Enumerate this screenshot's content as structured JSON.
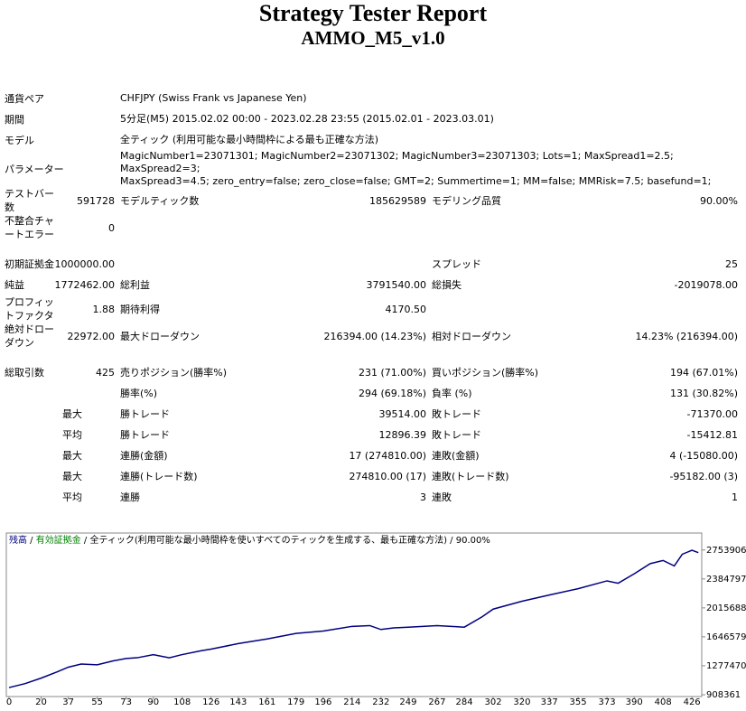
{
  "header": {
    "title": "Strategy Tester Report",
    "subtitle": "AMMO_M5_v1.0"
  },
  "info": [
    {
      "label": "通貨ペア",
      "lines": [
        "CHFJPY (Swiss Frank vs Japanese Yen)"
      ]
    },
    {
      "label": "期間",
      "lines": [
        "5分足(M5) 2015.02.02 00:00 - 2023.02.28 23:55 (2015.02.01 - 2023.03.01)"
      ]
    },
    {
      "label": "モデル",
      "lines": [
        "全ティック (利用可能な最小時間枠による最も正確な方法)"
      ]
    },
    {
      "label": "パラメーター",
      "lines": [
        "MagicNumber1=23071301; MagicNumber2=23071302; MagicNumber3=23071303; Lots=1; MaxSpread1=2.5; MaxSpread2=3;",
        "MaxSpread3=4.5; zero_entry=false; zero_close=false; GMT=2; Summertime=1; MM=false; MMRisk=7.5; basefund=1;"
      ]
    }
  ],
  "stats": [
    [
      "テストバー数",
      "591728",
      "モデルティック数",
      "185629589",
      "モデリング品質",
      "90.00%"
    ],
    [
      "不整合チャートエラー",
      "0",
      null,
      null,
      null,
      null
    ],
    [
      "初期証拠金",
      "1000000.00",
      null,
      null,
      "スプレッド",
      "25"
    ],
    [
      "純益",
      "1772462.00",
      "総利益",
      "3791540.00",
      "総損失",
      "-2019078.00"
    ],
    [
      "プロフィットファクタ",
      "1.88",
      "期待利得",
      "4170.50",
      null,
      null
    ],
    [
      "絶対ドローダウン",
      "22972.00",
      "最大ドローダウン",
      "216394.00 (14.23%)",
      "相対ドローダウン",
      "14.23% (216394.00)"
    ],
    [
      "総取引数",
      "425",
      "売りポジション(勝率%)",
      "231 (71.00%)",
      "買いポジション(勝率%)",
      "194 (67.01%)"
    ],
    [
      null,
      null,
      "勝率(%)",
      "294 (69.18%)",
      "負率 (%)",
      "131 (30.82%)"
    ],
    [
      null,
      "最大",
      "勝トレード",
      "39514.00",
      "敗トレード",
      "-71370.00"
    ],
    [
      null,
      "平均",
      "勝トレード",
      "12896.39",
      "敗トレード",
      "-15412.81"
    ],
    [
      null,
      "最大",
      "連勝(金額)",
      "17 (274810.00)",
      "連敗(金額)",
      "4 (-15080.00)"
    ],
    [
      null,
      "最大",
      "連勝(トレード数)",
      "274810.00 (17)",
      "連敗(トレード数)",
      "-95182.00 (3)"
    ],
    [
      null,
      "平均",
      "連勝",
      "3",
      "連敗",
      "1"
    ]
  ],
  "chart_data": {
    "type": "line",
    "legend": [
      "残高",
      "有効証拠金",
      "全ティック(利用可能な最小時間枠を使いすべてのティックを生成する、最も正確な方法)",
      "90.00%"
    ],
    "legend_colors": [
      "#000080",
      "#008000",
      "#000000",
      "#000000"
    ],
    "xlim": [
      0,
      431
    ],
    "ylim": [
      908361,
      2970000
    ],
    "xticks": [
      0,
      20,
      37,
      55,
      73,
      90,
      108,
      126,
      143,
      161,
      179,
      196,
      214,
      232,
      249,
      267,
      284,
      302,
      320,
      337,
      355,
      373,
      390,
      408,
      426
    ],
    "yticks": [
      908361,
      1277470,
      1646579,
      2015688,
      2384797,
      2753906
    ],
    "series": [
      {
        "name": "残高",
        "color": "#000080",
        "x": [
          0,
          10,
          20,
          30,
          37,
          45,
          55,
          65,
          73,
          80,
          90,
          100,
          108,
          120,
          126,
          143,
          161,
          179,
          196,
          214,
          225,
          232,
          240,
          249,
          267,
          284,
          295,
          302,
          320,
          337,
          355,
          373,
          380,
          390,
          400,
          408,
          415,
          420,
          426,
          430
        ],
        "values": [
          1000000,
          1050000,
          1120000,
          1200000,
          1260000,
          1300000,
          1290000,
          1340000,
          1370000,
          1380000,
          1420000,
          1380000,
          1420000,
          1470000,
          1490000,
          1560000,
          1620000,
          1690000,
          1720000,
          1780000,
          1790000,
          1740000,
          1760000,
          1770000,
          1790000,
          1770000,
          1900000,
          2000000,
          2100000,
          2180000,
          2260000,
          2360000,
          2330000,
          2450000,
          2580000,
          2620000,
          2550000,
          2700000,
          2750000,
          2720000
        ]
      }
    ]
  }
}
